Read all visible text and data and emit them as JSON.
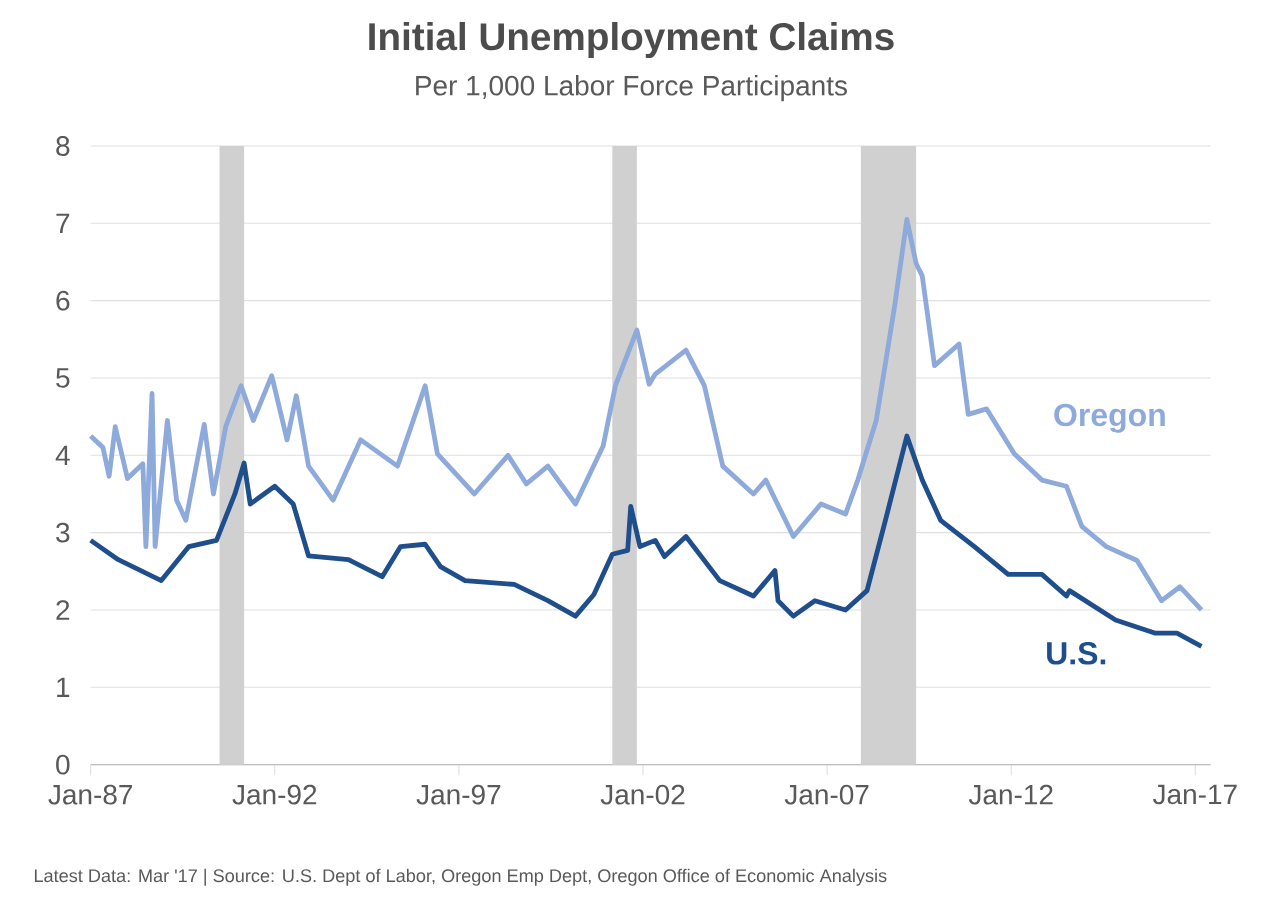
{
  "chart_data": {
    "type": "line",
    "title": "Initial Unemployment Claims",
    "subtitle": "Per 1,000 Labor Force Participants",
    "annotations": [
      "Latest Data: Mar '17  |  Source: U.S. Dept of Labor, Oregon Emp Dept, Oregon Office of Economic Analysis"
    ],
    "series": [
      {
        "name": "Oregon",
        "color": "#8eaadb",
        "x": [
          "1987-01",
          "1987-05",
          "1987-07",
          "1987-09",
          "1988-01",
          "1988-06",
          "1988-07",
          "1988-09",
          "1988-10",
          "1989-02",
          "1989-05",
          "1989-08",
          "1990-02",
          "1990-05",
          "1990-09",
          "1991-02",
          "1991-06",
          "1991-12",
          "1992-05",
          "1992-08",
          "1992-12",
          "1993-08",
          "1994-05",
          "1995-05",
          "1996-02",
          "1996-06",
          "1997-06",
          "1998-05",
          "1998-11",
          "1999-06",
          "2000-03",
          "2000-12",
          "2001-04",
          "2001-11",
          "2002-03",
          "2002-05",
          "2003-03",
          "2003-09",
          "2004-03",
          "2005-01",
          "2005-05",
          "2006-02",
          "2006-11",
          "2007-07",
          "2007-11",
          "2008-05",
          "2008-11",
          "2009-03",
          "2009-06",
          "2009-08",
          "2009-12",
          "2010-08",
          "2010-11",
          "2011-05",
          "2012-02",
          "2012-11",
          "2013-07",
          "2013-12",
          "2014-08",
          "2015-06",
          "2016-02",
          "2016-08",
          "2017-03"
        ],
        "values": [
          4.25,
          4.1,
          3.73,
          4.37,
          3.7,
          3.89,
          2.82,
          4.8,
          2.82,
          4.45,
          3.42,
          3.16,
          4.4,
          3.5,
          4.37,
          4.9,
          4.45,
          5.03,
          4.2,
          4.77,
          3.86,
          3.42,
          4.2,
          3.86,
          4.9,
          4.02,
          3.5,
          4.0,
          3.63,
          3.86,
          3.37,
          4.12,
          4.9,
          5.62,
          4.92,
          5.05,
          5.36,
          4.9,
          3.86,
          3.5,
          3.68,
          2.95,
          3.37,
          3.24,
          3.68,
          4.45,
          5.93,
          7.05,
          6.48,
          6.32,
          5.16,
          5.44,
          4.53,
          4.6,
          4.02,
          3.68,
          3.6,
          3.08,
          2.82,
          2.64,
          2.12,
          2.3,
          2.0
        ]
      },
      {
        "name": "U.S.",
        "color": "#1f4e8c",
        "x": [
          "1987-01",
          "1987-10",
          "1988-12",
          "1989-09",
          "1990-06",
          "1990-12",
          "1991-03",
          "1991-05",
          "1992-01",
          "1992-07",
          "1992-12",
          "1994-01",
          "1994-12",
          "1995-06",
          "1996-02",
          "1996-07",
          "1997-03",
          "1998-07",
          "1999-06",
          "2000-03",
          "2000-09",
          "2001-03",
          "2001-08",
          "2001-09",
          "2001-12",
          "2002-05",
          "2002-08",
          "2003-03",
          "2004-02",
          "2005-01",
          "2005-08",
          "2005-09",
          "2006-02",
          "2006-09",
          "2007-07",
          "2008-02",
          "2008-08",
          "2009-03",
          "2009-08",
          "2010-02",
          "2011-01",
          "2011-12",
          "2012-11",
          "2013-07",
          "2013-08",
          "2014-11",
          "2015-12",
          "2016-07",
          "2017-03"
        ],
        "values": [
          2.9,
          2.65,
          2.38,
          2.82,
          2.9,
          3.5,
          3.9,
          3.37,
          3.6,
          3.37,
          2.7,
          2.65,
          2.43,
          2.82,
          2.85,
          2.56,
          2.38,
          2.33,
          2.12,
          1.92,
          2.2,
          2.72,
          2.77,
          3.34,
          2.82,
          2.9,
          2.69,
          2.95,
          2.38,
          2.18,
          2.51,
          2.12,
          1.92,
          2.12,
          2.0,
          2.25,
          3.16,
          4.25,
          3.68,
          3.16,
          2.82,
          2.46,
          2.46,
          2.18,
          2.25,
          1.87,
          1.7,
          1.7,
          1.53
        ]
      }
    ],
    "bands": [
      {
        "axis": "x",
        "from": "1990-07",
        "to": "1991-03",
        "color": "#d0d0d0"
      },
      {
        "axis": "x",
        "from": "2001-03",
        "to": "2001-11",
        "color": "#d0d0d0"
      },
      {
        "axis": "x",
        "from": "2007-12",
        "to": "2009-06",
        "color": "#d0d0d0"
      }
    ],
    "xlim": [
      "1987-01",
      "2017-06"
    ],
    "xticks": [
      {
        "value": "1987-01",
        "label": "Jan-87"
      },
      {
        "value": "1992-01",
        "label": "Jan-92"
      },
      {
        "value": "1997-01",
        "label": "Jan-97"
      },
      {
        "value": "2002-01",
        "label": "Jan-02"
      },
      {
        "value": "2007-01",
        "label": "Jan-07"
      },
      {
        "value": "2012-01",
        "label": "Jan-12"
      },
      {
        "value": "2017-01",
        "label": "Jan-17"
      }
    ],
    "ylim": [
      0,
      8
    ],
    "yticks": [
      0,
      1,
      2,
      3,
      4,
      5,
      6,
      7,
      8
    ],
    "grid": "y",
    "legend": false,
    "marker": "none",
    "line_style": "solid"
  }
}
